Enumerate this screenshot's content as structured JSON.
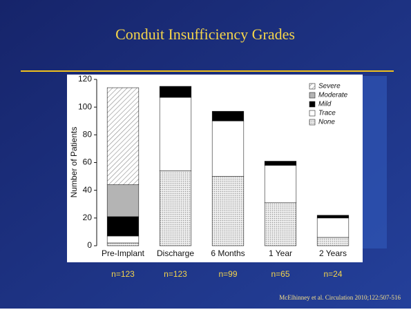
{
  "chart_data": {
    "type": "bar",
    "stacked": true,
    "title": "Conduit Insufficiency Grades",
    "ylabel": "Number of Patients",
    "categories": [
      "Pre-Implant",
      "Discharge",
      "6 Months",
      "1 Year",
      "2 Years"
    ],
    "series": [
      {
        "name": "None",
        "color": "#d8d8d8",
        "pattern": "dots",
        "values": [
          2,
          54,
          50,
          31,
          6
        ]
      },
      {
        "name": "Trace",
        "color": "#ffffff",
        "pattern": "solid",
        "values": [
          5,
          53,
          40,
          27,
          14
        ]
      },
      {
        "name": "Mild",
        "color": "#000000",
        "pattern": "solid",
        "values": [
          14,
          8,
          7,
          3,
          2
        ]
      },
      {
        "name": "Moderate",
        "color": "#b4b4b4",
        "pattern": "solid",
        "values": [
          23,
          0,
          0,
          0,
          0
        ]
      },
      {
        "name": "Severe",
        "color": "#888888",
        "pattern": "hatch",
        "values": [
          70,
          0,
          0,
          0,
          0
        ]
      }
    ],
    "n_labels": [
      "n=123",
      "n=123",
      "n=99",
      "n=65",
      "n=24"
    ],
    "ylim": [
      0,
      120
    ],
    "yticks": [
      0,
      20,
      40,
      60,
      80,
      100,
      120
    ],
    "legend": "top-right",
    "source": "McElhinney et al. Circulation 2010;122:507-516"
  }
}
